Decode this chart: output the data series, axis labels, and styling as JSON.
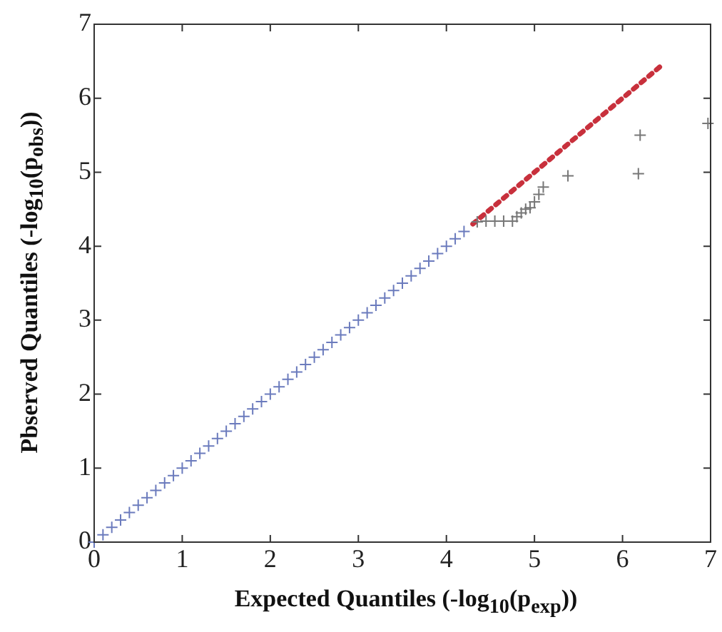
{
  "chart_data": {
    "type": "scatter",
    "xlabel": "Expected Quantiles (-log$_{10}$(p$_{exp}$))",
    "ylabel": "Pbserved Quantiles (-log$_{10}$(p$_{obs}$))",
    "xlim": [
      0,
      7
    ],
    "ylim": [
      0,
      7
    ],
    "xticks": [
      0,
      1,
      2,
      3,
      4,
      5,
      6,
      7
    ],
    "yticks": [
      0,
      1,
      2,
      3,
      4,
      5,
      6,
      7
    ],
    "grid": false,
    "legend": false,
    "series": [
      {
        "color": "#6b7bbd",
        "marker": "cross",
        "x": [
          0,
          0.1,
          0.2,
          0.3,
          0.4,
          0.5,
          0.6,
          0.7,
          0.8,
          0.9,
          1,
          1.1,
          1.2,
          1.3,
          1.4,
          1.5,
          1.6,
          1.7,
          1.8,
          1.9,
          2,
          2.1,
          2.2,
          2.3,
          2.4,
          2.5,
          2.6,
          2.7,
          2.8,
          2.9,
          3,
          3.1,
          3.2,
          3.3,
          3.4,
          3.5,
          3.6,
          3.7,
          3.8,
          3.9,
          4,
          4.1,
          4.2
        ],
        "values": [
          0,
          0.1,
          0.2,
          0.3,
          0.4,
          0.5,
          0.6,
          0.7,
          0.8,
          0.9,
          1,
          1.1,
          1.2,
          1.3,
          1.4,
          1.5,
          1.6,
          1.7,
          1.8,
          1.9,
          2,
          2.1,
          2.2,
          2.3,
          2.4,
          2.5,
          2.6,
          2.7,
          2.8,
          2.9,
          3,
          3.1,
          3.2,
          3.3,
          3.4,
          3.5,
          3.6,
          3.7,
          3.8,
          3.9,
          4,
          4.1,
          4.2
        ]
      },
      {
        "color": "#777777",
        "marker": "cross",
        "x": [
          4.35,
          4.45,
          4.55,
          4.65,
          4.75,
          4.8,
          4.85,
          4.9,
          4.95,
          5.0,
          5.05,
          5.1,
          5.38,
          6.18,
          6.2,
          6.97
        ],
        "values": [
          4.33,
          4.34,
          4.34,
          4.34,
          4.34,
          4.4,
          4.45,
          4.5,
          4.52,
          4.6,
          4.7,
          4.8,
          4.95,
          4.98,
          5.5,
          5.66
        ]
      },
      {
        "type": "line",
        "color": "#c8303c",
        "line_style": "dotted",
        "marker": "none",
        "x": [
          4.3,
          6.45
        ],
        "values": [
          4.3,
          6.45
        ]
      }
    ]
  }
}
